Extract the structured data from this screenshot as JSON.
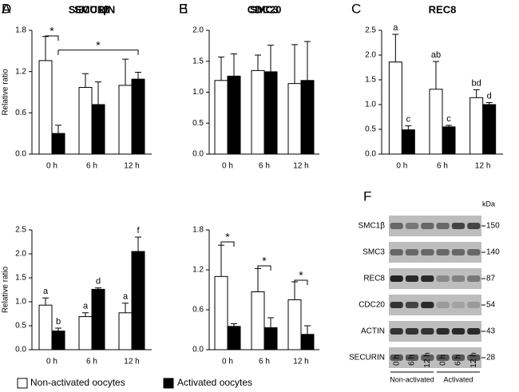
{
  "chart_data": [
    {
      "type": "bar",
      "panel": "A",
      "title": "SMC1β",
      "ylabel": "Relative ratio",
      "categories": [
        "0 h",
        "6 h",
        "12 h"
      ],
      "ylim": [
        0,
        1.8
      ],
      "yticks": [
        {
          "value": 0,
          "label": "0.0"
        },
        0.6,
        1.2,
        1.8
      ],
      "series": [
        {
          "name": "Non-activated oocytes",
          "color": "#ffffff",
          "values": [
            1.36,
            0.97,
            1.0
          ],
          "errors": [
            0.35,
            0.2,
            0.38
          ]
        },
        {
          "name": "Activated oocytes",
          "color": "#000000",
          "values": [
            0.3,
            0.72,
            1.09
          ],
          "errors": [
            0.12,
            0.33,
            0.1
          ]
        }
      ],
      "annotations": [
        "*",
        "*"
      ]
    },
    {
      "type": "bar",
      "panel": "B",
      "title": "SMC3",
      "categories": [
        "0 h",
        "6 h",
        "12 h"
      ],
      "ylim": [
        0,
        2.0
      ],
      "yticks": [
        {
          "value": 0,
          "label": "0.0"
        },
        0.5,
        {
          "value": 1,
          "label": "1.0"
        },
        1.5,
        {
          "value": 2,
          "label": "2.0"
        }
      ],
      "series": [
        {
          "color": "#ffffff",
          "values": [
            1.19,
            1.35,
            1.14
          ],
          "errors": [
            0.38,
            0.25,
            0.63
          ]
        },
        {
          "color": "#000000",
          "values": [
            1.26,
            1.33,
            1.19
          ],
          "errors": [
            0.36,
            0.43,
            0.63
          ]
        }
      ]
    },
    {
      "type": "bar",
      "panel": "C",
      "title": "REC8",
      "categories": [
        "0 h",
        "6 h",
        "12 h"
      ],
      "ylim": [
        0,
        2.5
      ],
      "yticks": [
        {
          "value": 0,
          "label": "0.0"
        },
        0.5,
        {
          "value": 1,
          "label": "1.0"
        },
        1.5,
        {
          "value": 2,
          "label": "2.0"
        },
        2.5
      ],
      "series": [
        {
          "color": "#ffffff",
          "values": [
            1.86,
            1.31,
            1.14
          ],
          "errors": [
            0.56,
            0.56,
            0.16
          ],
          "letters": [
            "a",
            "ab",
            "bd"
          ]
        },
        {
          "color": "#000000",
          "values": [
            0.49,
            0.55,
            1.0
          ],
          "errors": [
            0.08,
            0.03,
            0.04
          ],
          "letters": [
            "c",
            "c",
            "d"
          ]
        }
      ]
    },
    {
      "type": "bar",
      "panel": "D",
      "title": "SECURIN",
      "ylabel": "Relative ratio",
      "categories": [
        "0 h",
        "6 h",
        "12 h"
      ],
      "ylim": [
        0,
        2.5
      ],
      "yticks": [
        {
          "value": 0,
          "label": "0.0"
        },
        0.5,
        {
          "value": 1,
          "label": "1.0"
        },
        1.5,
        {
          "value": 2,
          "label": "2.0"
        },
        2.5
      ],
      "series": [
        {
          "color": "#ffffff",
          "values": [
            0.93,
            0.69,
            0.77
          ],
          "errors": [
            0.15,
            0.08,
            0.2
          ],
          "letters": [
            "a",
            "a",
            "a"
          ]
        },
        {
          "color": "#000000",
          "values": [
            0.39,
            1.26,
            2.05
          ],
          "errors": [
            0.06,
            0.03,
            0.3
          ],
          "letters": [
            "b",
            "d",
            "f"
          ]
        }
      ]
    },
    {
      "type": "bar",
      "panel": "E",
      "title": "CDC20",
      "categories": [
        "0 h",
        "6 h",
        "12 h"
      ],
      "ylim": [
        0,
        1.8
      ],
      "yticks": [
        {
          "value": 0,
          "label": "0.0"
        },
        0.6,
        1.2,
        1.8
      ],
      "series": [
        {
          "color": "#ffffff",
          "values": [
            1.1,
            0.87,
            0.75
          ],
          "errors": [
            0.47,
            0.35,
            0.27
          ]
        },
        {
          "color": "#000000",
          "values": [
            0.35,
            0.33,
            0.23
          ],
          "errors": [
            0.04,
            0.15,
            0.13
          ]
        }
      ],
      "annotations": [
        "*",
        "*",
        "*"
      ]
    }
  ],
  "blot": {
    "panel": "F",
    "unit": "kDa",
    "rows": [
      {
        "label": "SMC1β",
        "kda": "150"
      },
      {
        "label": "SMC3",
        "kda": "140"
      },
      {
        "label": "REC8",
        "kda": "87"
      },
      {
        "label": "CDC20",
        "kda": "54"
      },
      {
        "label": "ACTIN",
        "kda": "43"
      },
      {
        "label": "SECURIN",
        "kda": "28"
      }
    ],
    "lanes": [
      "0 h",
      "6 h",
      "12 h",
      "0 h",
      "6 h",
      "12 h"
    ],
    "groups": [
      "Non-activated",
      "Activated"
    ]
  }
}
